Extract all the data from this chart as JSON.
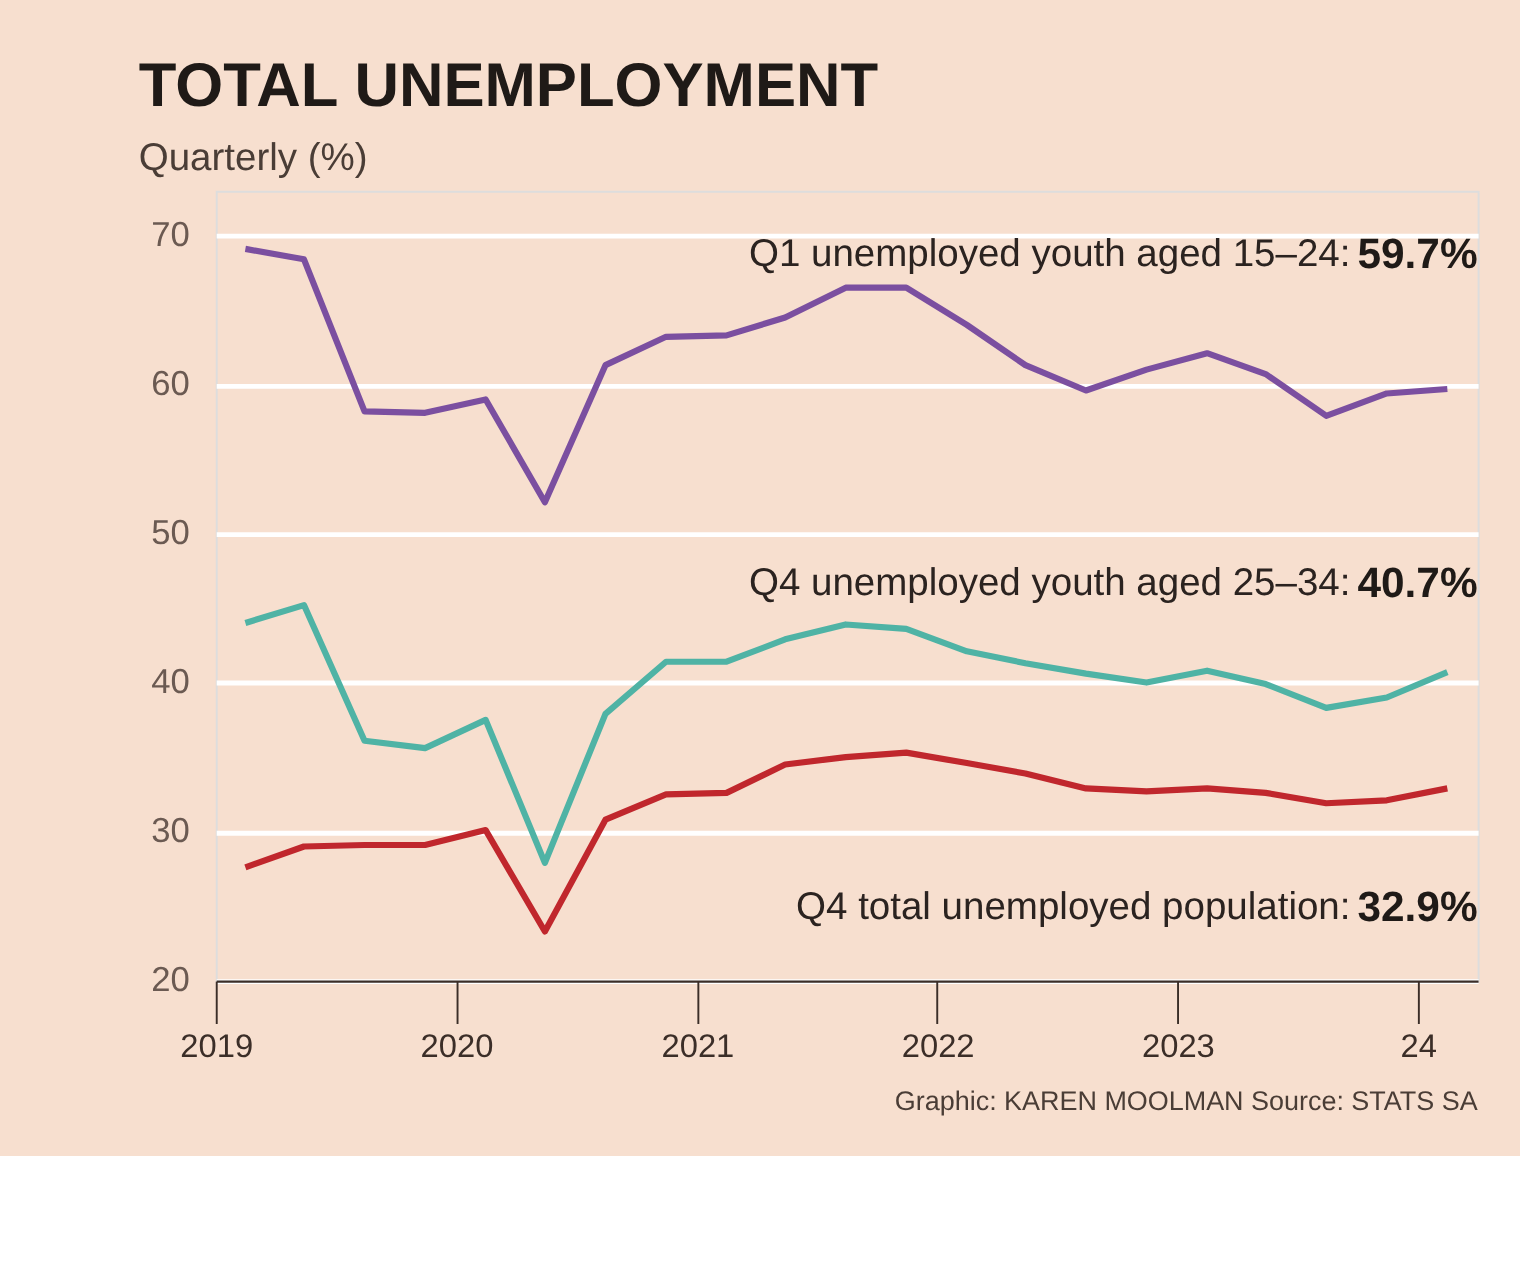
{
  "chart_data": {
    "type": "line",
    "title": "TOTAL UNEMPLOYMENT",
    "subtitle": "Quarterly (%)",
    "x": [
      "2019-02-15",
      "2019-05-15",
      "2019-08-15",
      "2019-11-15",
      "2020-02-15",
      "2020-05-15",
      "2020-08-15",
      "2020-11-15",
      "2021-02-15",
      "2021-05-15",
      "2021-08-15",
      "2021-11-15",
      "2022-02-15",
      "2022-05-15",
      "2022-08-15",
      "2022-11-15",
      "2023-02-15",
      "2023-05-15",
      "2023-08-15",
      "2023-11-15",
      "2024-02-15"
    ],
    "series": [
      {
        "name": "Q1 unemployed youth aged 15–24:",
        "color": "#7b4fa0",
        "values": [
          69.1,
          68.4,
          58.2,
          58.1,
          59.0,
          52.1,
          61.3,
          63.2,
          63.3,
          64.5,
          66.5,
          66.5,
          64.0,
          61.3,
          59.6,
          61.0,
          62.1,
          60.7,
          57.9,
          59.4,
          59.7
        ],
        "value_labels": [
          null,
          null,
          null,
          null,
          null,
          null,
          null,
          null,
          null,
          null,
          null,
          null,
          null,
          null,
          null,
          null,
          null,
          null,
          null,
          null,
          "59.7%"
        ]
      },
      {
        "name": "Q4 unemployed youth aged 25–34:",
        "color": "#4fb3a5",
        "values": [
          44.0,
          45.2,
          36.1,
          35.6,
          37.5,
          27.9,
          37.9,
          41.4,
          41.4,
          42.9,
          43.9,
          43.6,
          42.1,
          41.3,
          40.6,
          40.0,
          40.8,
          39.9,
          38.3,
          39.0,
          40.7
        ],
        "value_labels": [
          null,
          null,
          null,
          null,
          null,
          null,
          null,
          null,
          null,
          null,
          null,
          null,
          null,
          null,
          null,
          null,
          null,
          null,
          null,
          null,
          "40.7%"
        ]
      },
      {
        "name": "Q4 total unemployed population:",
        "color": "#c0272d",
        "values": [
          27.6,
          29.0,
          29.1,
          29.1,
          30.1,
          23.3,
          30.8,
          32.5,
          32.6,
          34.5,
          35.0,
          35.3,
          34.6,
          33.9,
          32.9,
          32.7,
          32.9,
          32.6,
          31.9,
          32.1,
          32.9
        ],
        "value_labels": [
          null,
          null,
          null,
          null,
          null,
          null,
          null,
          null,
          null,
          null,
          null,
          null,
          null,
          null,
          null,
          null,
          null,
          null,
          null,
          null,
          "32.9%"
        ]
      }
    ],
    "xlim": [
      "2019-01-01",
      "2024-04-01"
    ],
    "xticks": [
      {
        "value": "2019",
        "label": "2019"
      },
      {
        "value": "2020",
        "label": "2020"
      },
      {
        "value": "2021",
        "label": "2021"
      },
      {
        "value": "2022",
        "label": "2022"
      },
      {
        "value": "2023",
        "label": "2023"
      },
      {
        "value": "2024",
        "label": "24"
      }
    ],
    "ylim": [
      20,
      73
    ],
    "yticks": [
      20,
      30,
      40,
      50,
      60,
      70
    ],
    "grid": "y",
    "marker": "none",
    "line_style": "solid",
    "annotations": [
      "Graphic: KAREN MOOLMAN  Source: STATS SA"
    ]
  }
}
